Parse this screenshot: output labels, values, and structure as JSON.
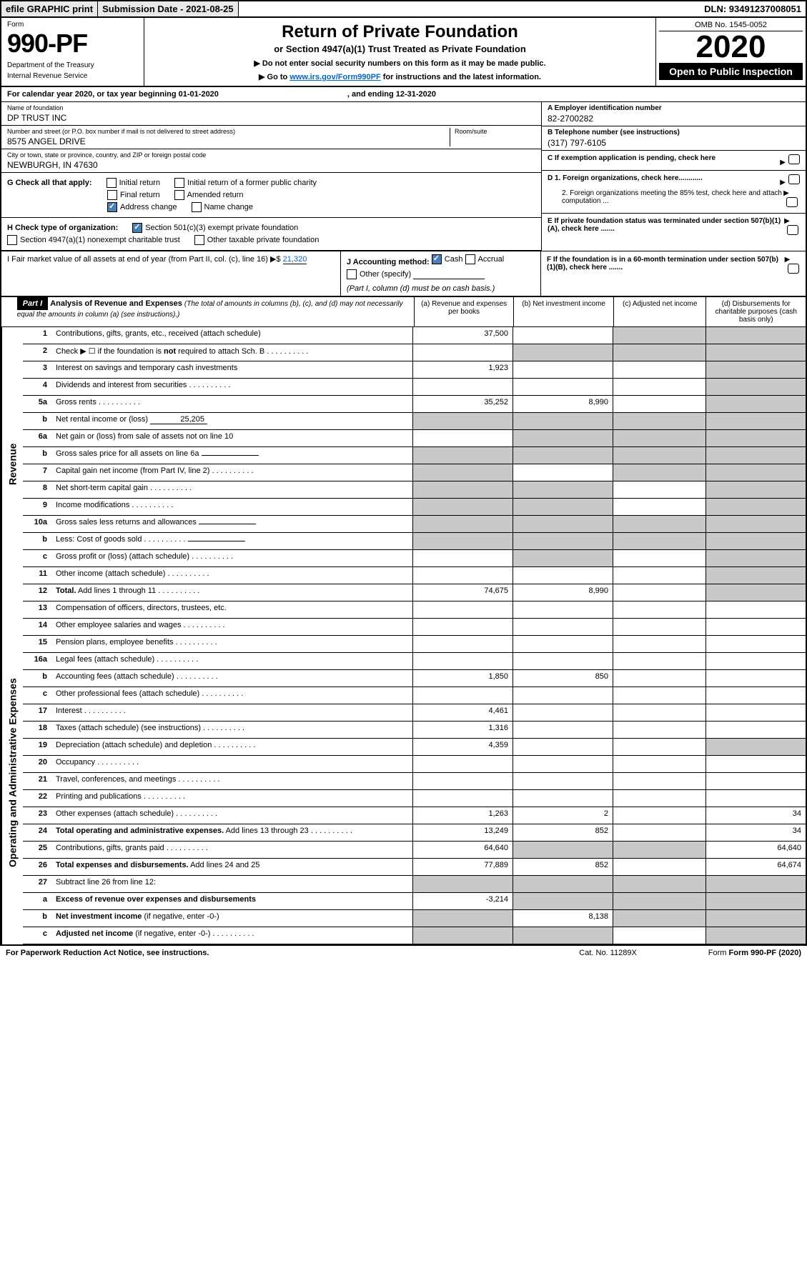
{
  "top": {
    "efile": "efile GRAPHIC print",
    "submission": "Submission Date - 2021-08-25",
    "dln": "DLN: 93491237008051"
  },
  "header": {
    "form_label": "Form",
    "form_num": "990-PF",
    "dept": "Department of the Treasury",
    "irs": "Internal Revenue Service",
    "title": "Return of Private Foundation",
    "subtitle": "or Section 4947(a)(1) Trust Treated as Private Foundation",
    "note1": "▶ Do not enter social security numbers on this form as it may be made public.",
    "note2_pre": "▶ Go to ",
    "note2_link": "www.irs.gov/Form990PF",
    "note2_post": " for instructions and the latest information.",
    "omb": "OMB No. 1545-0052",
    "year": "2020",
    "open": "Open to Public Inspection"
  },
  "cal": {
    "text": "For calendar year 2020, or tax year beginning 01-01-2020",
    "end": ", and ending 12-31-2020"
  },
  "info": {
    "name_label": "Name of foundation",
    "name": "DP TRUST INC",
    "addr_label": "Number and street (or P.O. box number if mail is not delivered to street address)",
    "addr": "8575 ANGEL DRIVE",
    "room_label": "Room/suite",
    "city_label": "City or town, state or province, country, and ZIP or foreign postal code",
    "city": "NEWBURGH, IN  47630",
    "a_label": "A Employer identification number",
    "a_val": "82-2700282",
    "b_label": "B Telephone number (see instructions)",
    "b_val": "(317) 797-6105",
    "c_label": "C If exemption application is pending, check here",
    "d1": "D 1. Foreign organizations, check here............",
    "d2": "2. Foreign organizations meeting the 85% test, check here and attach computation ...",
    "e": "E  If private foundation status was terminated under section 507(b)(1)(A), check here .......",
    "f": "F  If the foundation is in a 60-month termination under section 507(b)(1)(B), check here ......."
  },
  "g": {
    "label": "G Check all that apply:",
    "opts": [
      "Initial return",
      "Final return",
      "Address change",
      "Initial return of a former public charity",
      "Amended return",
      "Name change"
    ],
    "checked": [
      false,
      false,
      true,
      false,
      false,
      false
    ]
  },
  "h": {
    "label": "H Check type of organization:",
    "opt1": "Section 501(c)(3) exempt private foundation",
    "opt2": "Section 4947(a)(1) nonexempt charitable trust",
    "opt3": "Other taxable private foundation",
    "checked": [
      true,
      false,
      false
    ]
  },
  "i": {
    "label": "I Fair market value of all assets at end of year (from Part II, col. (c), line 16) ▶$",
    "val": "21,320"
  },
  "j": {
    "label": "J Accounting method:",
    "cash": "Cash",
    "accrual": "Accrual",
    "other": "Other (specify)",
    "note": "(Part I, column (d) must be on cash basis.)",
    "cash_checked": true
  },
  "part1": {
    "label": "Part I",
    "title": "Analysis of Revenue and Expenses",
    "sub": "(The total of amounts in columns (b), (c), and (d) may not necessarily equal the amounts in column (a) (see instructions).)",
    "col_a": "(a)   Revenue and expenses per books",
    "col_b": "(b)  Net investment income",
    "col_c": "(c)  Adjusted net income",
    "col_d": "(d)  Disbursements for charitable purposes (cash basis only)"
  },
  "sides": {
    "revenue": "Revenue",
    "expenses": "Operating and Administrative Expenses"
  },
  "rows": [
    {
      "n": "1",
      "label": "Contributions, gifts, grants, etc., received (attach schedule)",
      "a": "37,500",
      "b": "",
      "c": "g",
      "d": "g"
    },
    {
      "n": "2",
      "label": "Check ▶ ☐ if the foundation is <b>not</b> required to attach Sch. B",
      "dots": true,
      "a": "",
      "b": "g",
      "c": "g",
      "d": "g"
    },
    {
      "n": "3",
      "label": "Interest on savings and temporary cash investments",
      "a": "1,923",
      "b": "",
      "c": "",
      "d": "g"
    },
    {
      "n": "4",
      "label": "Dividends and interest from securities",
      "dots": true,
      "a": "",
      "b": "",
      "c": "",
      "d": "g"
    },
    {
      "n": "5a",
      "label": "Gross rents",
      "dots": true,
      "a": "35,252",
      "b": "8,990",
      "c": "",
      "d": "g"
    },
    {
      "n": "b",
      "label": "Net rental income or (loss)",
      "inline": "25,205",
      "a": "g",
      "b": "g",
      "c": "g",
      "d": "g"
    },
    {
      "n": "6a",
      "label": "Net gain or (loss) from sale of assets not on line 10",
      "a": "",
      "b": "g",
      "c": "g",
      "d": "g"
    },
    {
      "n": "b",
      "label": "Gross sales price for all assets on line 6a",
      "inline": "",
      "a": "g",
      "b": "g",
      "c": "g",
      "d": "g"
    },
    {
      "n": "7",
      "label": "Capital gain net income (from Part IV, line 2)",
      "dots": true,
      "a": "g",
      "b": "",
      "c": "g",
      "d": "g"
    },
    {
      "n": "8",
      "label": "Net short-term capital gain",
      "dots": true,
      "a": "g",
      "b": "g",
      "c": "",
      "d": "g"
    },
    {
      "n": "9",
      "label": "Income modifications",
      "dots": true,
      "a": "g",
      "b": "g",
      "c": "",
      "d": "g"
    },
    {
      "n": "10a",
      "label": "Gross sales less returns and allowances",
      "inline": "",
      "a": "g",
      "b": "g",
      "c": "g",
      "d": "g"
    },
    {
      "n": "b",
      "label": "Less: Cost of goods sold",
      "dots": true,
      "inline": "",
      "a": "g",
      "b": "g",
      "c": "g",
      "d": "g"
    },
    {
      "n": "c",
      "label": "Gross profit or (loss) (attach schedule)",
      "dots": true,
      "a": "",
      "b": "g",
      "c": "",
      "d": "g"
    },
    {
      "n": "11",
      "label": "Other income (attach schedule)",
      "dots": true,
      "a": "",
      "b": "",
      "c": "",
      "d": "g"
    },
    {
      "n": "12",
      "label": "<b>Total.</b> Add lines 1 through 11",
      "dots": true,
      "a": "74,675",
      "b": "8,990",
      "c": "",
      "d": "g"
    }
  ],
  "rows2": [
    {
      "n": "13",
      "label": "Compensation of officers, directors, trustees, etc.",
      "a": "",
      "b": "",
      "c": "",
      "d": ""
    },
    {
      "n": "14",
      "label": "Other employee salaries and wages",
      "dots": true,
      "a": "",
      "b": "",
      "c": "",
      "d": ""
    },
    {
      "n": "15",
      "label": "Pension plans, employee benefits",
      "dots": true,
      "a": "",
      "b": "",
      "c": "",
      "d": ""
    },
    {
      "n": "16a",
      "label": "Legal fees (attach schedule)",
      "dots": true,
      "a": "",
      "b": "",
      "c": "",
      "d": ""
    },
    {
      "n": "b",
      "label": "Accounting fees (attach schedule)",
      "dots": true,
      "a": "1,850",
      "b": "850",
      "c": "",
      "d": ""
    },
    {
      "n": "c",
      "label": "Other professional fees (attach schedule)",
      "dots": true,
      "a": "",
      "b": "",
      "c": "",
      "d": ""
    },
    {
      "n": "17",
      "label": "Interest",
      "dots": true,
      "a": "4,461",
      "b": "",
      "c": "",
      "d": ""
    },
    {
      "n": "18",
      "label": "Taxes (attach schedule) (see instructions)",
      "dots": true,
      "a": "1,316",
      "b": "",
      "c": "",
      "d": ""
    },
    {
      "n": "19",
      "label": "Depreciation (attach schedule) and depletion",
      "dots": true,
      "a": "4,359",
      "b": "",
      "c": "",
      "d": "g"
    },
    {
      "n": "20",
      "label": "Occupancy",
      "dots": true,
      "a": "",
      "b": "",
      "c": "",
      "d": ""
    },
    {
      "n": "21",
      "label": "Travel, conferences, and meetings",
      "dots": true,
      "a": "",
      "b": "",
      "c": "",
      "d": ""
    },
    {
      "n": "22",
      "label": "Printing and publications",
      "dots": true,
      "a": "",
      "b": "",
      "c": "",
      "d": ""
    },
    {
      "n": "23",
      "label": "Other expenses (attach schedule)",
      "dots": true,
      "a": "1,263",
      "b": "2",
      "c": "",
      "d": "34"
    },
    {
      "n": "24",
      "label": "<b>Total operating and administrative expenses.</b> Add lines 13 through 23",
      "dots": true,
      "a": "13,249",
      "b": "852",
      "c": "",
      "d": "34"
    },
    {
      "n": "25",
      "label": "Contributions, gifts, grants paid",
      "dots": true,
      "a": "64,640",
      "b": "g",
      "c": "g",
      "d": "64,640"
    },
    {
      "n": "26",
      "label": "<b>Total expenses and disbursements.</b> Add lines 24 and 25",
      "a": "77,889",
      "b": "852",
      "c": "",
      "d": "64,674"
    },
    {
      "n": "27",
      "label": "Subtract line 26 from line 12:",
      "a": "g",
      "b": "g",
      "c": "g",
      "d": "g"
    },
    {
      "n": "a",
      "label": "<b>Excess of revenue over expenses and disbursements</b>",
      "a": "-3,214",
      "b": "g",
      "c": "g",
      "d": "g"
    },
    {
      "n": "b",
      "label": "<b>Net investment income</b> (if negative, enter -0-)",
      "a": "g",
      "b": "8,138",
      "c": "g",
      "d": "g"
    },
    {
      "n": "c",
      "label": "<b>Adjusted net income</b> (if negative, enter -0-)",
      "dots": true,
      "a": "g",
      "b": "g",
      "c": "",
      "d": "g"
    }
  ],
  "footer": {
    "left": "For Paperwork Reduction Act Notice, see instructions.",
    "mid": "Cat. No. 11289X",
    "right": "Form 990-PF (2020)"
  }
}
